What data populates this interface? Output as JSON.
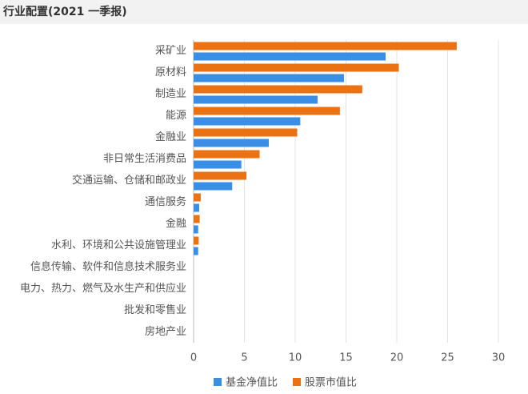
{
  "chart_data": {
    "type": "hbar",
    "title": "行业配置(2021 一季报)",
    "categories": [
      "采矿业",
      "原材料",
      "制造业",
      "能源",
      "金融业",
      "非日常生活消费品",
      "交通运输、仓储和邮政业",
      "通信服务",
      "金融",
      "水利、环境和公共设施管理业",
      "信息传输、软件和信息技术服务业",
      "电力、热力、燃气及水生产和供应业",
      "批发和零售业",
      "房地产业"
    ],
    "series": [
      {
        "name": "基金净值比",
        "color": "#3a8ee6",
        "values": [
          18.9,
          14.8,
          12.2,
          10.5,
          7.4,
          4.7,
          3.8,
          0.55,
          0.45,
          0.45,
          0,
          0,
          0,
          0
        ]
      },
      {
        "name": "股票市值比",
        "color": "#ea7212",
        "values": [
          25.9,
          20.2,
          16.6,
          14.4,
          10.2,
          6.5,
          5.2,
          0.7,
          0.6,
          0.5,
          0,
          0,
          0,
          0
        ]
      }
    ],
    "xlim": [
      0,
      30
    ],
    "xticks": [
      0,
      5,
      10,
      15,
      20,
      25,
      30
    ],
    "grid": true
  }
}
